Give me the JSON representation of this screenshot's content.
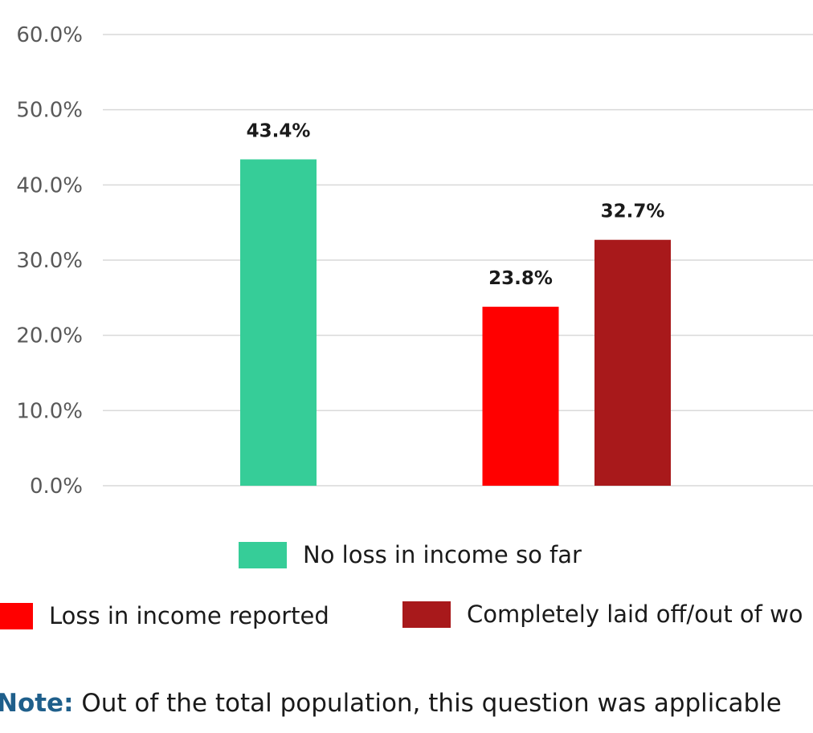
{
  "chart_data": {
    "type": "bar",
    "y_ticks": [
      "0.0%",
      "10.0%",
      "20.0%",
      "30.0%",
      "40.0%",
      "50.0%",
      "60.0%"
    ],
    "ylim": [
      0,
      60
    ],
    "grid": true,
    "legend_position": "bottom",
    "series": [
      {
        "name": "No loss in income so far",
        "value": 43.4,
        "label": "43.4%",
        "color": "#36CD98"
      },
      {
        "name": "Loss in income reported",
        "value": 23.8,
        "label": "23.8%",
        "color": "#FF0000"
      },
      {
        "name": "Completely laid off/out of wo",
        "value": 32.7,
        "label": "32.7%",
        "color": "#A8191B"
      }
    ]
  },
  "legend": {
    "items": [
      {
        "label": "No loss in income so far",
        "color": "#36CD98"
      },
      {
        "label": "Loss in income reported",
        "color": "#FF0000"
      },
      {
        "label": "Completely laid off/out of wo",
        "color": "#A8191B"
      }
    ]
  },
  "note": {
    "label": "Note:",
    "text": " Out of the total population, this question was applicable"
  }
}
